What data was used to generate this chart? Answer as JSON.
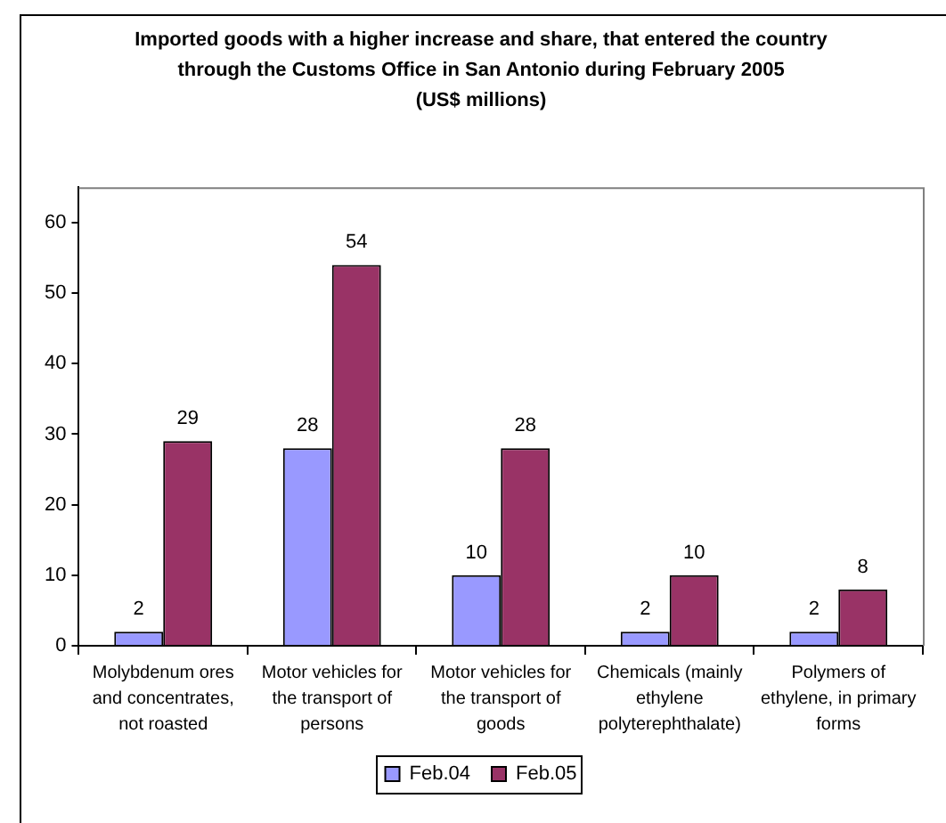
{
  "chart_data": {
    "type": "bar",
    "title": "Imported goods with a higher increase and share, that entered the country through the Customs Office in San Antonio during February 2005",
    "subtitle": "(US$ millions)",
    "categories": [
      "Molybdenum ores and concentrates, not roasted",
      "Motor vehicles for the transport of persons",
      "Motor vehicles for the transport of goods",
      "Chemicals (mainly ethylene polyterephthalate)",
      "Polymers of ethylene, in primary forms"
    ],
    "series": [
      {
        "name": "Feb.04",
        "color": "#9999ff",
        "values": [
          2,
          28,
          10,
          2,
          2
        ]
      },
      {
        "name": "Feb.05",
        "color": "#993366",
        "values": [
          29,
          54,
          28,
          10,
          8
        ]
      }
    ],
    "ylim": [
      0,
      65
    ],
    "yticks": [
      0,
      10,
      20,
      30,
      40,
      50,
      60
    ],
    "data_labels": true,
    "legend": "bottom"
  }
}
